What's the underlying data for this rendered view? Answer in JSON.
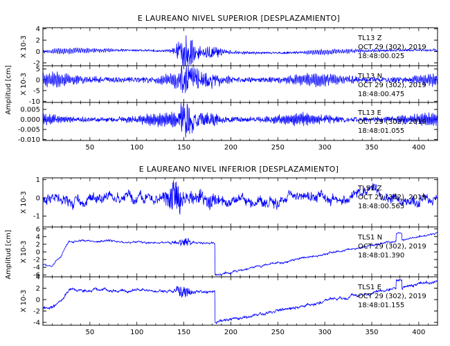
{
  "chart_data": [
    {
      "type": "line",
      "title": "E LAUREANO NIVEL SUPERIOR [DESPLAZAMIENTO]",
      "ylabel": "Amplitud [cm]",
      "xlim": [
        0,
        420
      ],
      "xticks": [
        "50",
        "100",
        "150",
        "200",
        "250",
        "300",
        "350",
        "400"
      ],
      "trace_color": "#0000ff",
      "panels": [
        {
          "channel": "TL13  Z",
          "date_label": "OCT 29 (302), 2019",
          "time_label": "18:48:00.025",
          "scale_label": "X 10-3",
          "ylim": [
            -2.5,
            4.2
          ],
          "yticks": [
            "4",
            "2",
            "0",
            "-2"
          ],
          "shape": "seismic-burst",
          "noise_amplitude": 0.4,
          "burst_amplitude": 3.0
        },
        {
          "channel": "TL13  N",
          "date_label": "OCT 29 (302), 2019",
          "time_label": "18:48:00.475",
          "scale_label": "X 10-3",
          "ylim": [
            -10.5,
            6.5
          ],
          "yticks": [
            "5",
            "0",
            "-5",
            "-10"
          ],
          "shape": "seismic-burst",
          "noise_amplitude": 2.5,
          "burst_amplitude": 8.0
        },
        {
          "channel": "TL13  E",
          "date_label": "OCT 29 (302), 2019",
          "time_label": "18:48:01.055",
          "scale_label": "",
          "ylim": [
            -0.0105,
            0.0085
          ],
          "yticks": [
            "0.005",
            "0.000",
            "-0.005",
            "-0.010"
          ],
          "shape": "seismic-burst",
          "noise_amplitude": 0.0025,
          "burst_amplitude": 0.008
        }
      ]
    },
    {
      "type": "line",
      "title": "E LAUREANO NIVEL INFERIOR [DESPLAZAMIENTO]",
      "ylabel": "Amplitud [cm]",
      "xlim": [
        0,
        420
      ],
      "xticks": [
        "50",
        "100",
        "150",
        "200",
        "250",
        "300",
        "350",
        "400"
      ],
      "trace_color": "#0000ff",
      "panels": [
        {
          "channel": "TLS1  Z",
          "date_label": "OCT 29 (302), 2019",
          "time_label": "18:48:00.565",
          "scale_label": "X 10-3",
          "ylim": [
            -1.6,
            1.1
          ],
          "yticks": [
            "1",
            "0",
            "-1"
          ],
          "shape": "noisy",
          "noise_amplitude": 0.45,
          "burst_amplitude": 0.8
        },
        {
          "channel": "TLS1  N",
          "date_label": "OCT 29 (302), 2019",
          "time_label": "18:48:01.390",
          "scale_label": "X 10-3",
          "ylim": [
            -6.5,
            6.5
          ],
          "yticks": [
            "6",
            "4",
            "2",
            "0",
            "-2",
            "-4",
            "-6"
          ],
          "shape": "step-drift",
          "start_level": -3.5,
          "plateau_level": 3.0,
          "drop_level": -6.0,
          "end_level": 5.0,
          "step_up_x": 20,
          "drop_x": 183
        },
        {
          "channel": "TLS1  E",
          "date_label": "OCT 29 (302), 2019",
          "time_label": "18:48:01.155",
          "scale_label": "X 10-3",
          "ylim": [
            -4.5,
            4.0
          ],
          "yticks": [
            "4",
            "2",
            "0",
            "-2",
            "-4"
          ],
          "shape": "step-drift",
          "start_level": -1.5,
          "plateau_level": 1.8,
          "drop_level": -4.0,
          "end_level": 3.3,
          "step_up_x": 20,
          "drop_x": 183
        }
      ]
    }
  ]
}
